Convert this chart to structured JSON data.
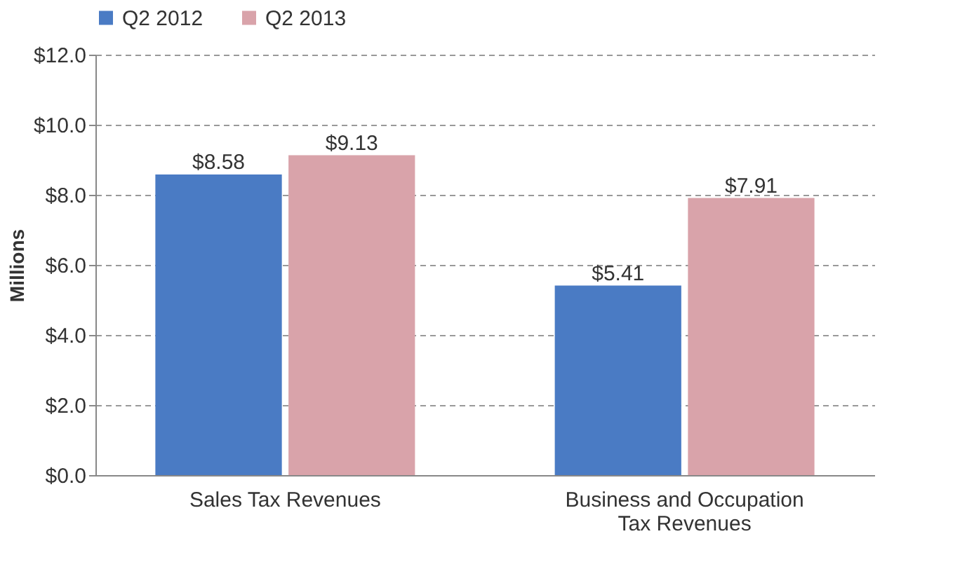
{
  "chart_data": {
    "type": "bar",
    "ylabel": "Millions",
    "categories": [
      "Sales Tax Revenues",
      "Business and Occupation Tax Revenues"
    ],
    "series": [
      {
        "name": "Q2 2012",
        "color": "#4a7bc4",
        "values": [
          8.58,
          5.41
        ],
        "value_labels": [
          "$8.58",
          "$5.41"
        ]
      },
      {
        "name": "Q2 2013",
        "color": "#d9a3aa",
        "values": [
          9.13,
          7.91
        ],
        "value_labels": [
          "$9.13",
          "$7.91"
        ]
      }
    ],
    "ylim": [
      0,
      12
    ],
    "yticks": [
      {
        "value": 0,
        "label": "$0.0"
      },
      {
        "value": 2,
        "label": "$2.0"
      },
      {
        "value": 4,
        "label": "$4.0"
      },
      {
        "value": 6,
        "label": "$6.0"
      },
      {
        "value": 8,
        "label": "$8.0"
      },
      {
        "value": 10,
        "label": "$10.0"
      },
      {
        "value": 12,
        "label": "$12.0"
      }
    ],
    "grid": "y",
    "legend": "top"
  }
}
